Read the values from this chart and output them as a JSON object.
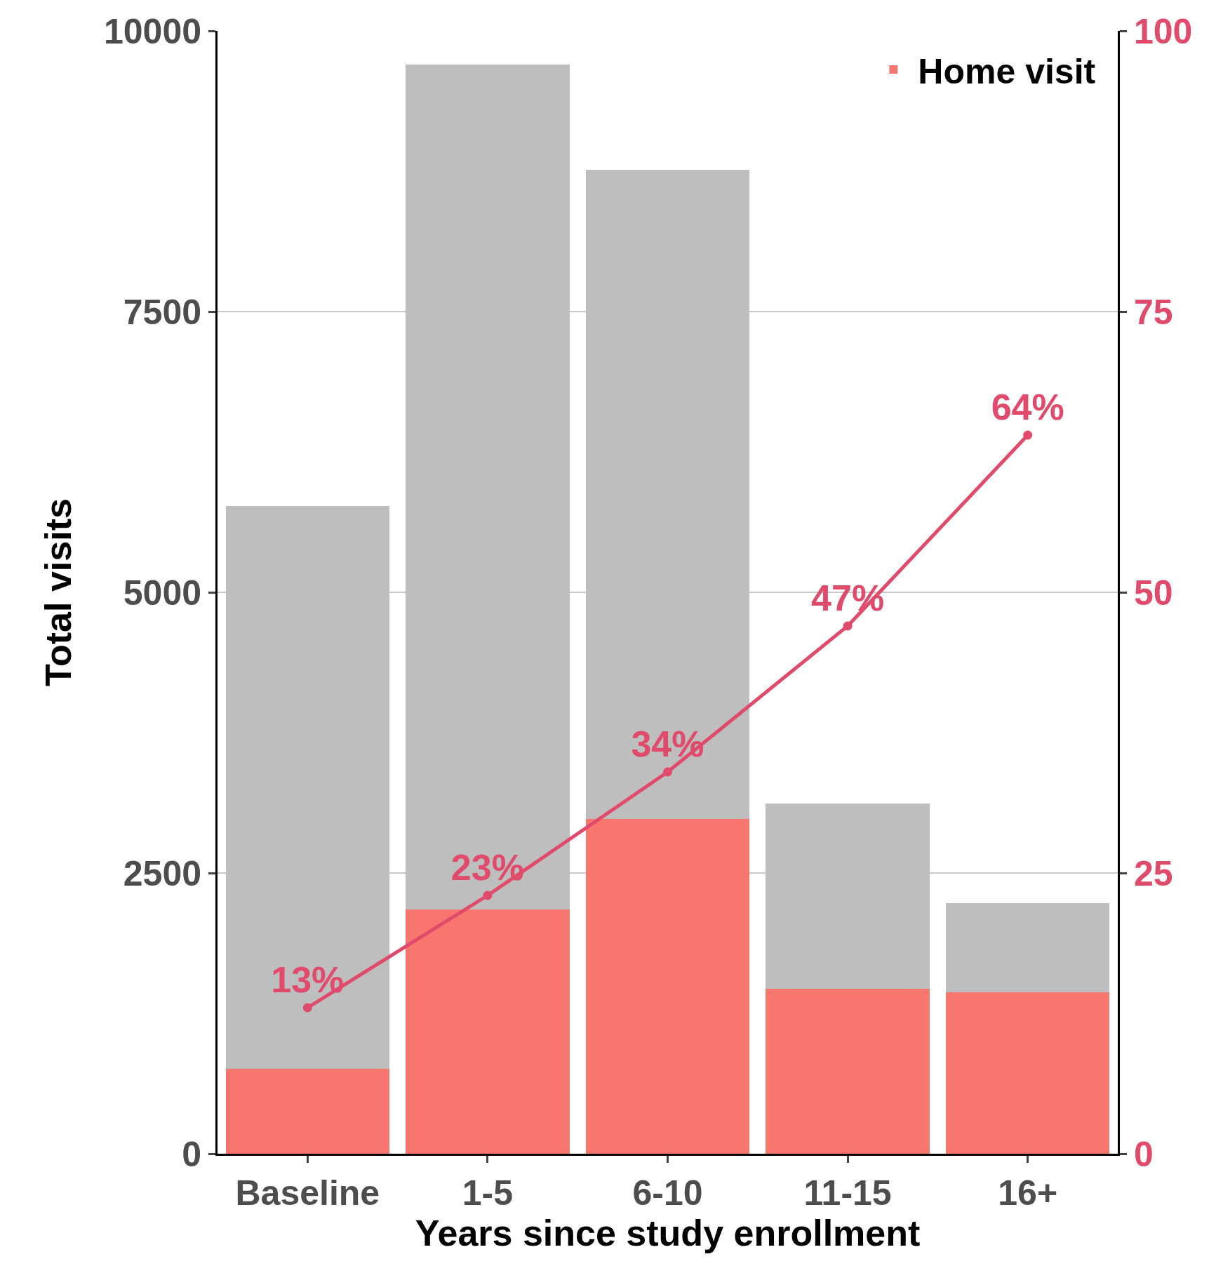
{
  "chart_data": {
    "type": "bar",
    "stacked": true,
    "xlabel": "Years since study enrollment",
    "ylabel": "Total visits",
    "categories": [
      "Baseline",
      "1-5",
      "6-10",
      "11-15",
      "16+"
    ],
    "series": [
      {
        "name": "Home visit",
        "color": "#f8766d",
        "values": [
          754,
          2177,
          2981,
          1466,
          1437
        ]
      },
      {
        "color": "#bebebe",
        "values": [
          5015,
          7521,
          5783,
          1652,
          797
        ]
      },
      {
        "type": "line",
        "axis": "y2",
        "color": "#e04b6b",
        "values": [
          13,
          23,
          34,
          47,
          64
        ],
        "value_labels": [
          "13%",
          "23%",
          "34%",
          "47%",
          "64%"
        ]
      }
    ],
    "ylim": [
      0,
      10000
    ],
    "yticks": [
      0,
      2500,
      5000,
      7500,
      10000
    ],
    "y2lim": [
      0,
      100
    ],
    "y2ticks": [
      0,
      25,
      50,
      75,
      100
    ],
    "grid": "y",
    "legend": "top right",
    "marker": "circle",
    "line_style": "solid"
  }
}
